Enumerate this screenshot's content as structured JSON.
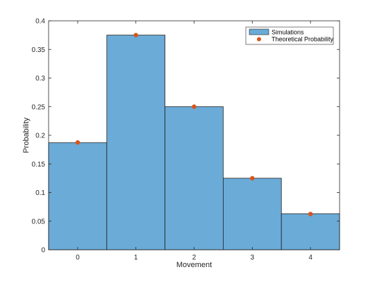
{
  "chart_data": {
    "type": "bar",
    "title": "",
    "xlabel": "Movement",
    "ylabel": "Probability",
    "categories": [
      "0",
      "1",
      "2",
      "3",
      "4"
    ],
    "series": [
      {
        "name": "Simulations",
        "kind": "bar",
        "values": [
          0.187,
          0.375,
          0.25,
          0.125,
          0.063
        ]
      },
      {
        "name": "Theoretical Probability",
        "kind": "scatter",
        "values": [
          0.1875,
          0.375,
          0.25,
          0.125,
          0.0625
        ]
      }
    ],
    "ylim": [
      0,
      0.4
    ],
    "xlim": [
      -0.5,
      4.5
    ],
    "yticks": [
      "0",
      "0.05",
      "0.1",
      "0.15",
      "0.2",
      "0.25",
      "0.3",
      "0.35",
      "0.4"
    ],
    "ytick_values": [
      0,
      0.05,
      0.1,
      0.15,
      0.2,
      0.25,
      0.3,
      0.35,
      0.4
    ],
    "grid": false,
    "legend_position": "top-right",
    "colors": {
      "bar_fill": "#6aabd8",
      "bar_edge": "#1f1f1f",
      "marker": "#d9541a",
      "axis": "#262626"
    }
  }
}
